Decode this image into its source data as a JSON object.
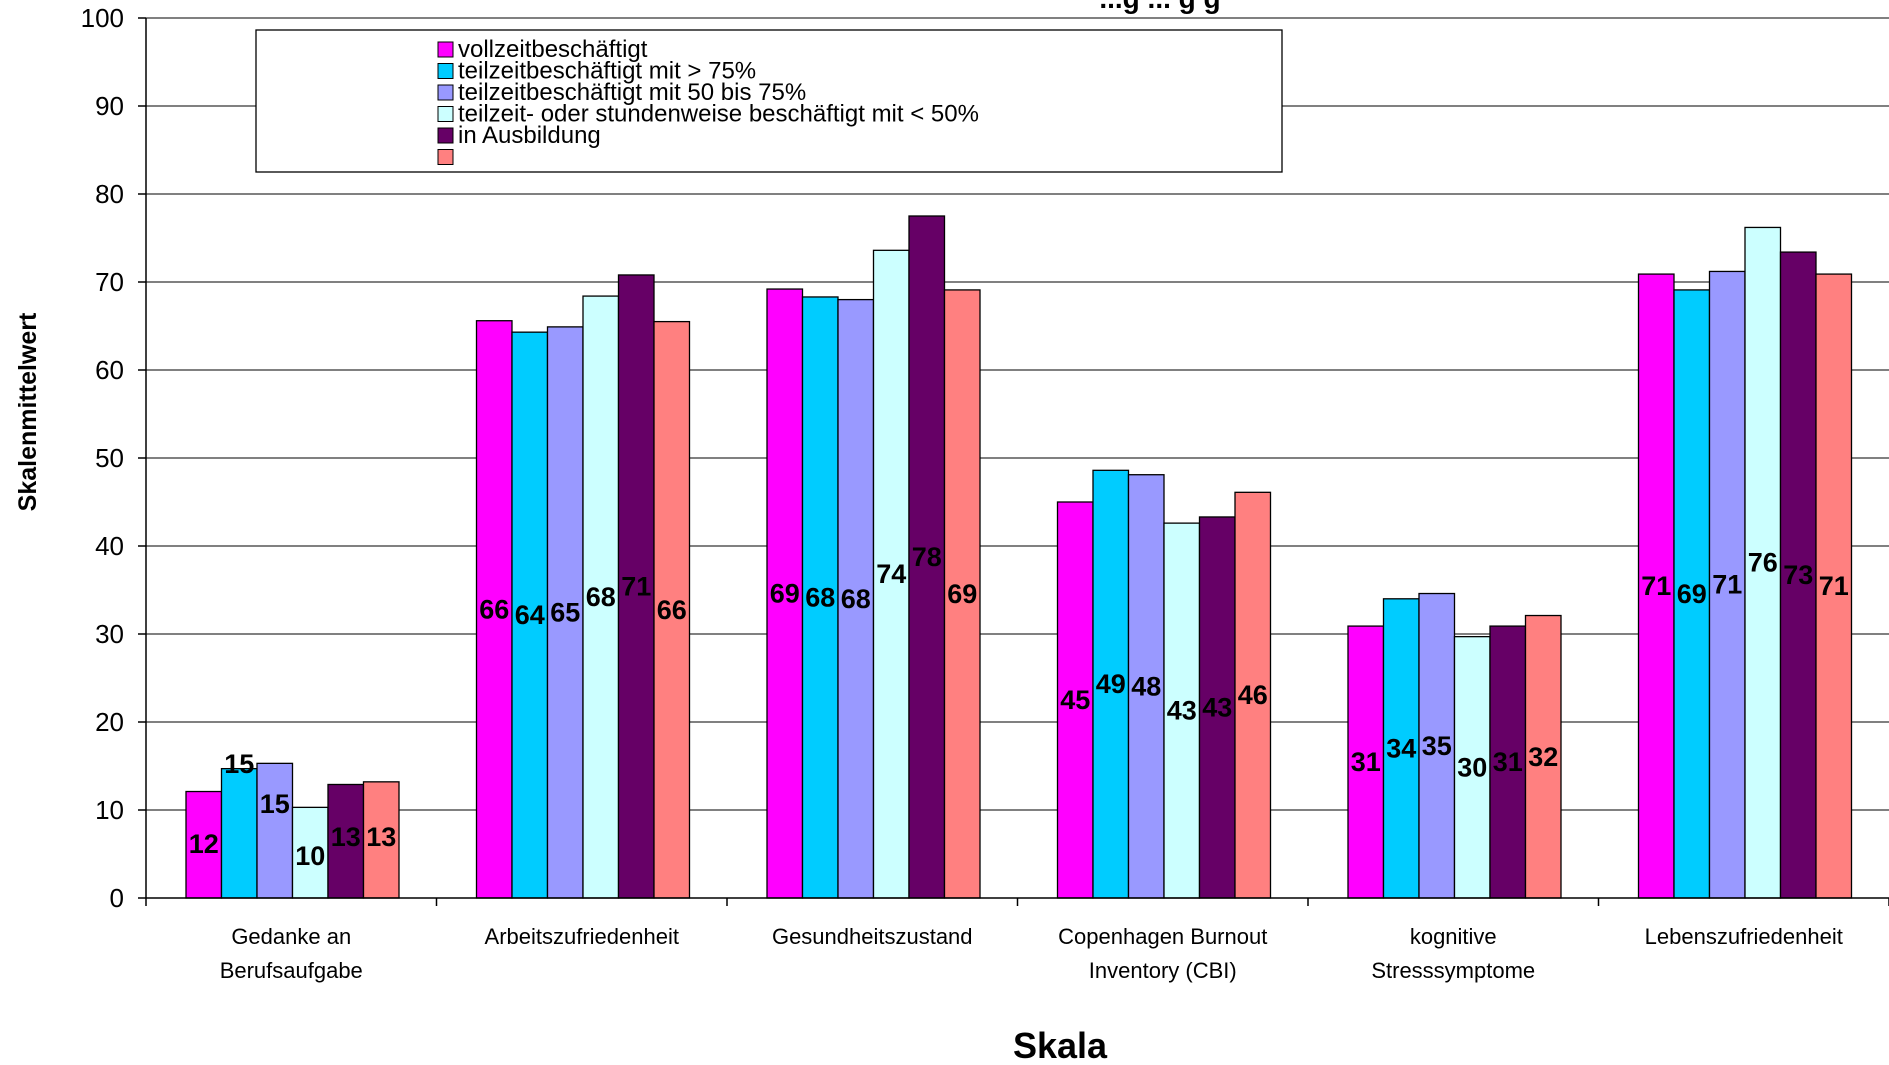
{
  "chart_data": {
    "type": "bar",
    "title": "...g ... g g",
    "xlabel": "Skala",
    "ylabel": "Skalenmittelwert",
    "ylim": [
      0,
      100
    ],
    "yticks": [
      0,
      10,
      20,
      30,
      40,
      50,
      60,
      70,
      80,
      90,
      100
    ],
    "grid": true,
    "legend_position": "top-left inside plot",
    "categories": [
      [
        "Gedanke an",
        "Berufsaufgabe"
      ],
      [
        "Arbeitszufriedenheit"
      ],
      [
        "Gesundheitszustand"
      ],
      [
        "Copenhagen Burnout",
        "Inventory (CBI)"
      ],
      [
        "kognitive",
        "Stresssymptome"
      ],
      [
        "Lebenszufriedenheit"
      ]
    ],
    "series": [
      {
        "name": "vollzeitbeschäftigt",
        "color": "#FF00FF",
        "values": [
          12.1,
          65.6,
          69.2,
          45.0,
          30.9,
          70.9
        ],
        "labels": [
          "12",
          "66",
          "69",
          "45",
          "31",
          "71"
        ]
      },
      {
        "name": "teilzeitbeschäftigt mit > 75%",
        "color": "#00CCFF",
        "values": [
          14.7,
          64.3,
          68.3,
          48.6,
          34.0,
          69.1
        ],
        "labels": [
          "15",
          "64",
          "68",
          "49",
          "34",
          "69"
        ]
      },
      {
        "name": "teilzeitbeschäftigt mit  50 bis 75%",
        "color": "#9999FF",
        "values": [
          15.3,
          64.9,
          68.0,
          48.1,
          34.6,
          71.2
        ],
        "labels": [
          "15",
          "65",
          "68",
          "48",
          "35",
          "71"
        ]
      },
      {
        "name": "teilzeit- oder stundenweise beschäftigt mit < 50%",
        "color": "#CCFFFF",
        "values": [
          10.3,
          68.4,
          73.6,
          42.6,
          29.7,
          76.2
        ],
        "labels": [
          "10",
          "68",
          "74",
          "43",
          "30",
          "76"
        ]
      },
      {
        "name": "in Ausbildung",
        "color": "#660066",
        "values": [
          12.9,
          70.8,
          77.5,
          43.3,
          30.9,
          73.4
        ],
        "labels": [
          "13",
          "71",
          "78",
          "43",
          "31",
          "73"
        ]
      },
      {
        "name": "",
        "color": "#FF8080",
        "values": [
          13.2,
          65.5,
          69.1,
          46.1,
          32.1,
          70.9
        ],
        "labels": [
          "13",
          "66",
          "69",
          "46",
          "32",
          "71"
        ]
      }
    ]
  }
}
